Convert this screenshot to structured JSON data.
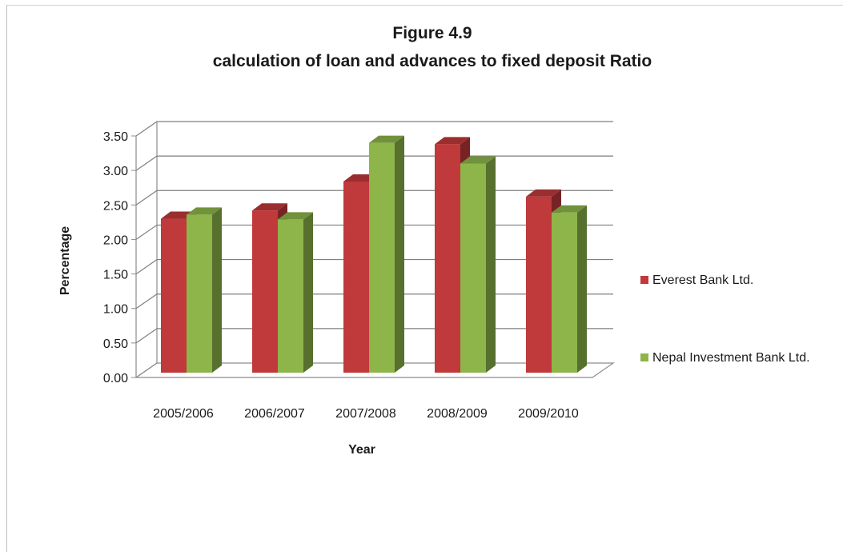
{
  "chart_data": {
    "type": "bar",
    "title": "Figure 4.9",
    "subtitle": "calculation of loan and advances to fixed deposit Ratio",
    "xlabel": "Year",
    "ylabel": "Percentage",
    "categories": [
      "2005/2006",
      "2006/2007",
      "2007/2008",
      "2008/2009",
      "2009/2010"
    ],
    "series": [
      {
        "name": "Everest Bank Ltd.",
        "values": [
          2.3,
          2.42,
          2.84,
          3.38,
          2.62
        ],
        "color": "#c0393b"
      },
      {
        "name": "Nepal Investment Bank Ltd.",
        "values": [
          2.36,
          2.29,
          3.4,
          3.1,
          2.39
        ],
        "color": "#8db54a"
      }
    ],
    "ylim": [
      0,
      3.5
    ],
    "yticks": [
      "0.00",
      "0.50",
      "1.00",
      "1.50",
      "2.00",
      "2.50",
      "3.00",
      "3.50"
    ],
    "grid": true,
    "three_d": true,
    "legend_position": "right"
  }
}
